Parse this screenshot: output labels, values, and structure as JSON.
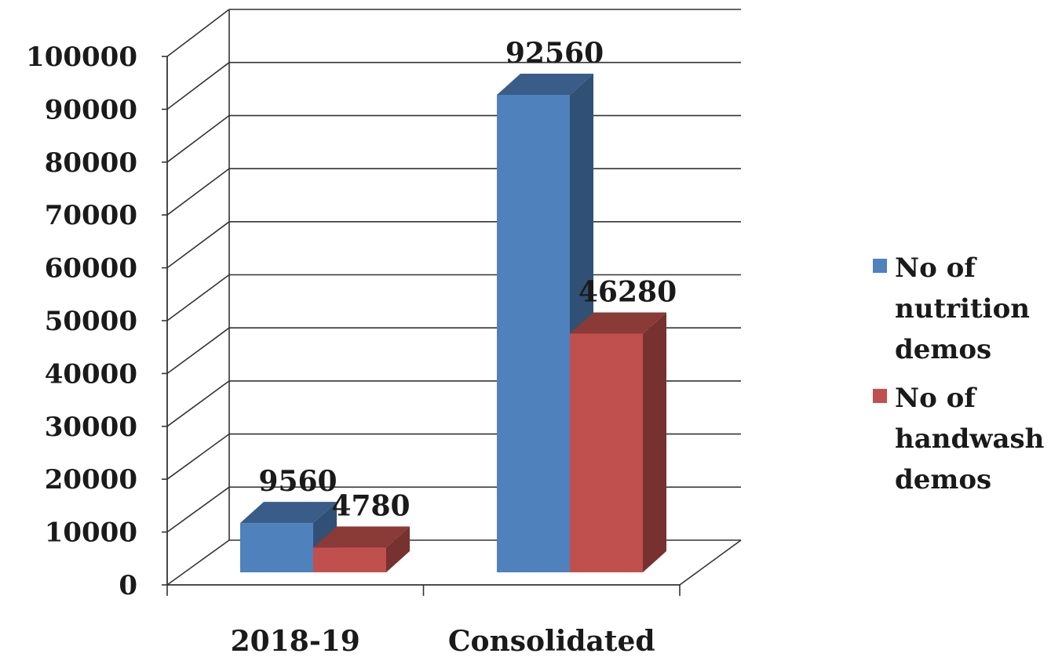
{
  "chart_data": {
    "type": "bar",
    "style": "3d-clustered-column",
    "title": "",
    "xlabel": "",
    "ylabel": "",
    "categories": [
      "2018-19",
      "Consolidated"
    ],
    "series": [
      {
        "name": "No of nutrition demos",
        "values": [
          9560,
          92560
        ],
        "color": "#4F81BD"
      },
      {
        "name": "No of handwash demos",
        "values": [
          4780,
          46280
        ],
        "color": "#C0504D"
      }
    ],
    "ylim": [
      0,
      100000
    ],
    "yticks": [
      "0",
      "10000",
      "20000",
      "30000",
      "40000",
      "50000",
      "60000",
      "70000",
      "80000",
      "90000",
      "100000"
    ],
    "data_labels": [
      [
        "9560",
        "92560"
      ],
      [
        "4780",
        "46280"
      ]
    ],
    "grid": true,
    "legend_position": "right"
  }
}
